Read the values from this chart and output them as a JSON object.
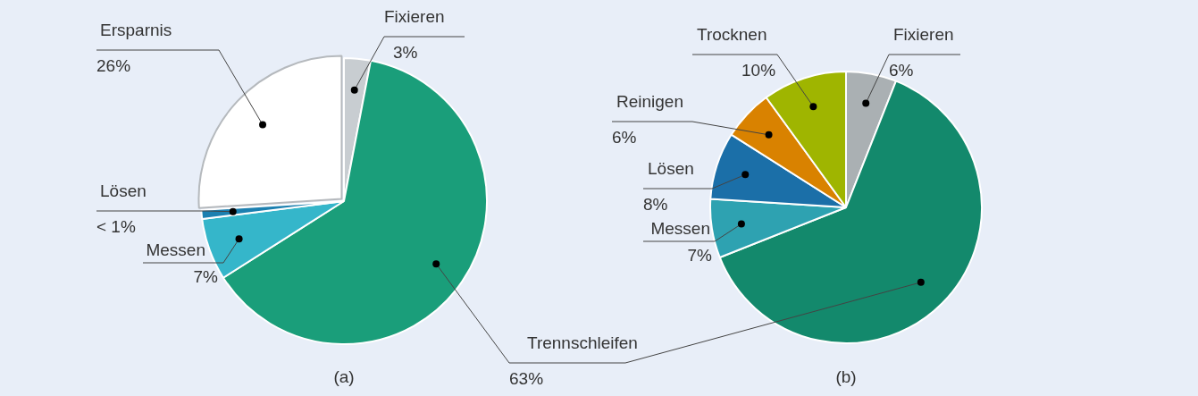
{
  "chart_data": [
    {
      "type": "pie",
      "categories": [
        "Fixieren",
        "Trennschleifen",
        "Messen",
        "Lösen",
        "Ersparnis"
      ],
      "values": [
        3,
        63,
        7,
        1,
        26
      ],
      "colors": [
        "#c8cdd1",
        "#1a9e7a",
        "#35b6ca",
        "#1c80b0",
        "#ffffff"
      ],
      "value_labels": [
        "3%",
        "63%",
        "7%",
        "< 1%",
        "26%"
      ],
      "annotations": [
        "(a)"
      ],
      "legend": false
    },
    {
      "type": "pie",
      "categories": [
        "Fixieren",
        null,
        "Messen",
        "Lösen",
        "Reinigen",
        "Trocknen"
      ],
      "values": [
        6,
        63,
        7,
        8,
        6,
        10
      ],
      "colors": [
        "#aab0b3",
        "#13896c",
        "#2ea2b1",
        "#1b6fa8",
        "#d98200",
        "#9fb500"
      ],
      "value_labels": [
        "6%",
        null,
        "7%",
        "8%",
        "6%",
        "10%"
      ],
      "annotations": [
        "(b)"
      ],
      "legend": false
    }
  ]
}
